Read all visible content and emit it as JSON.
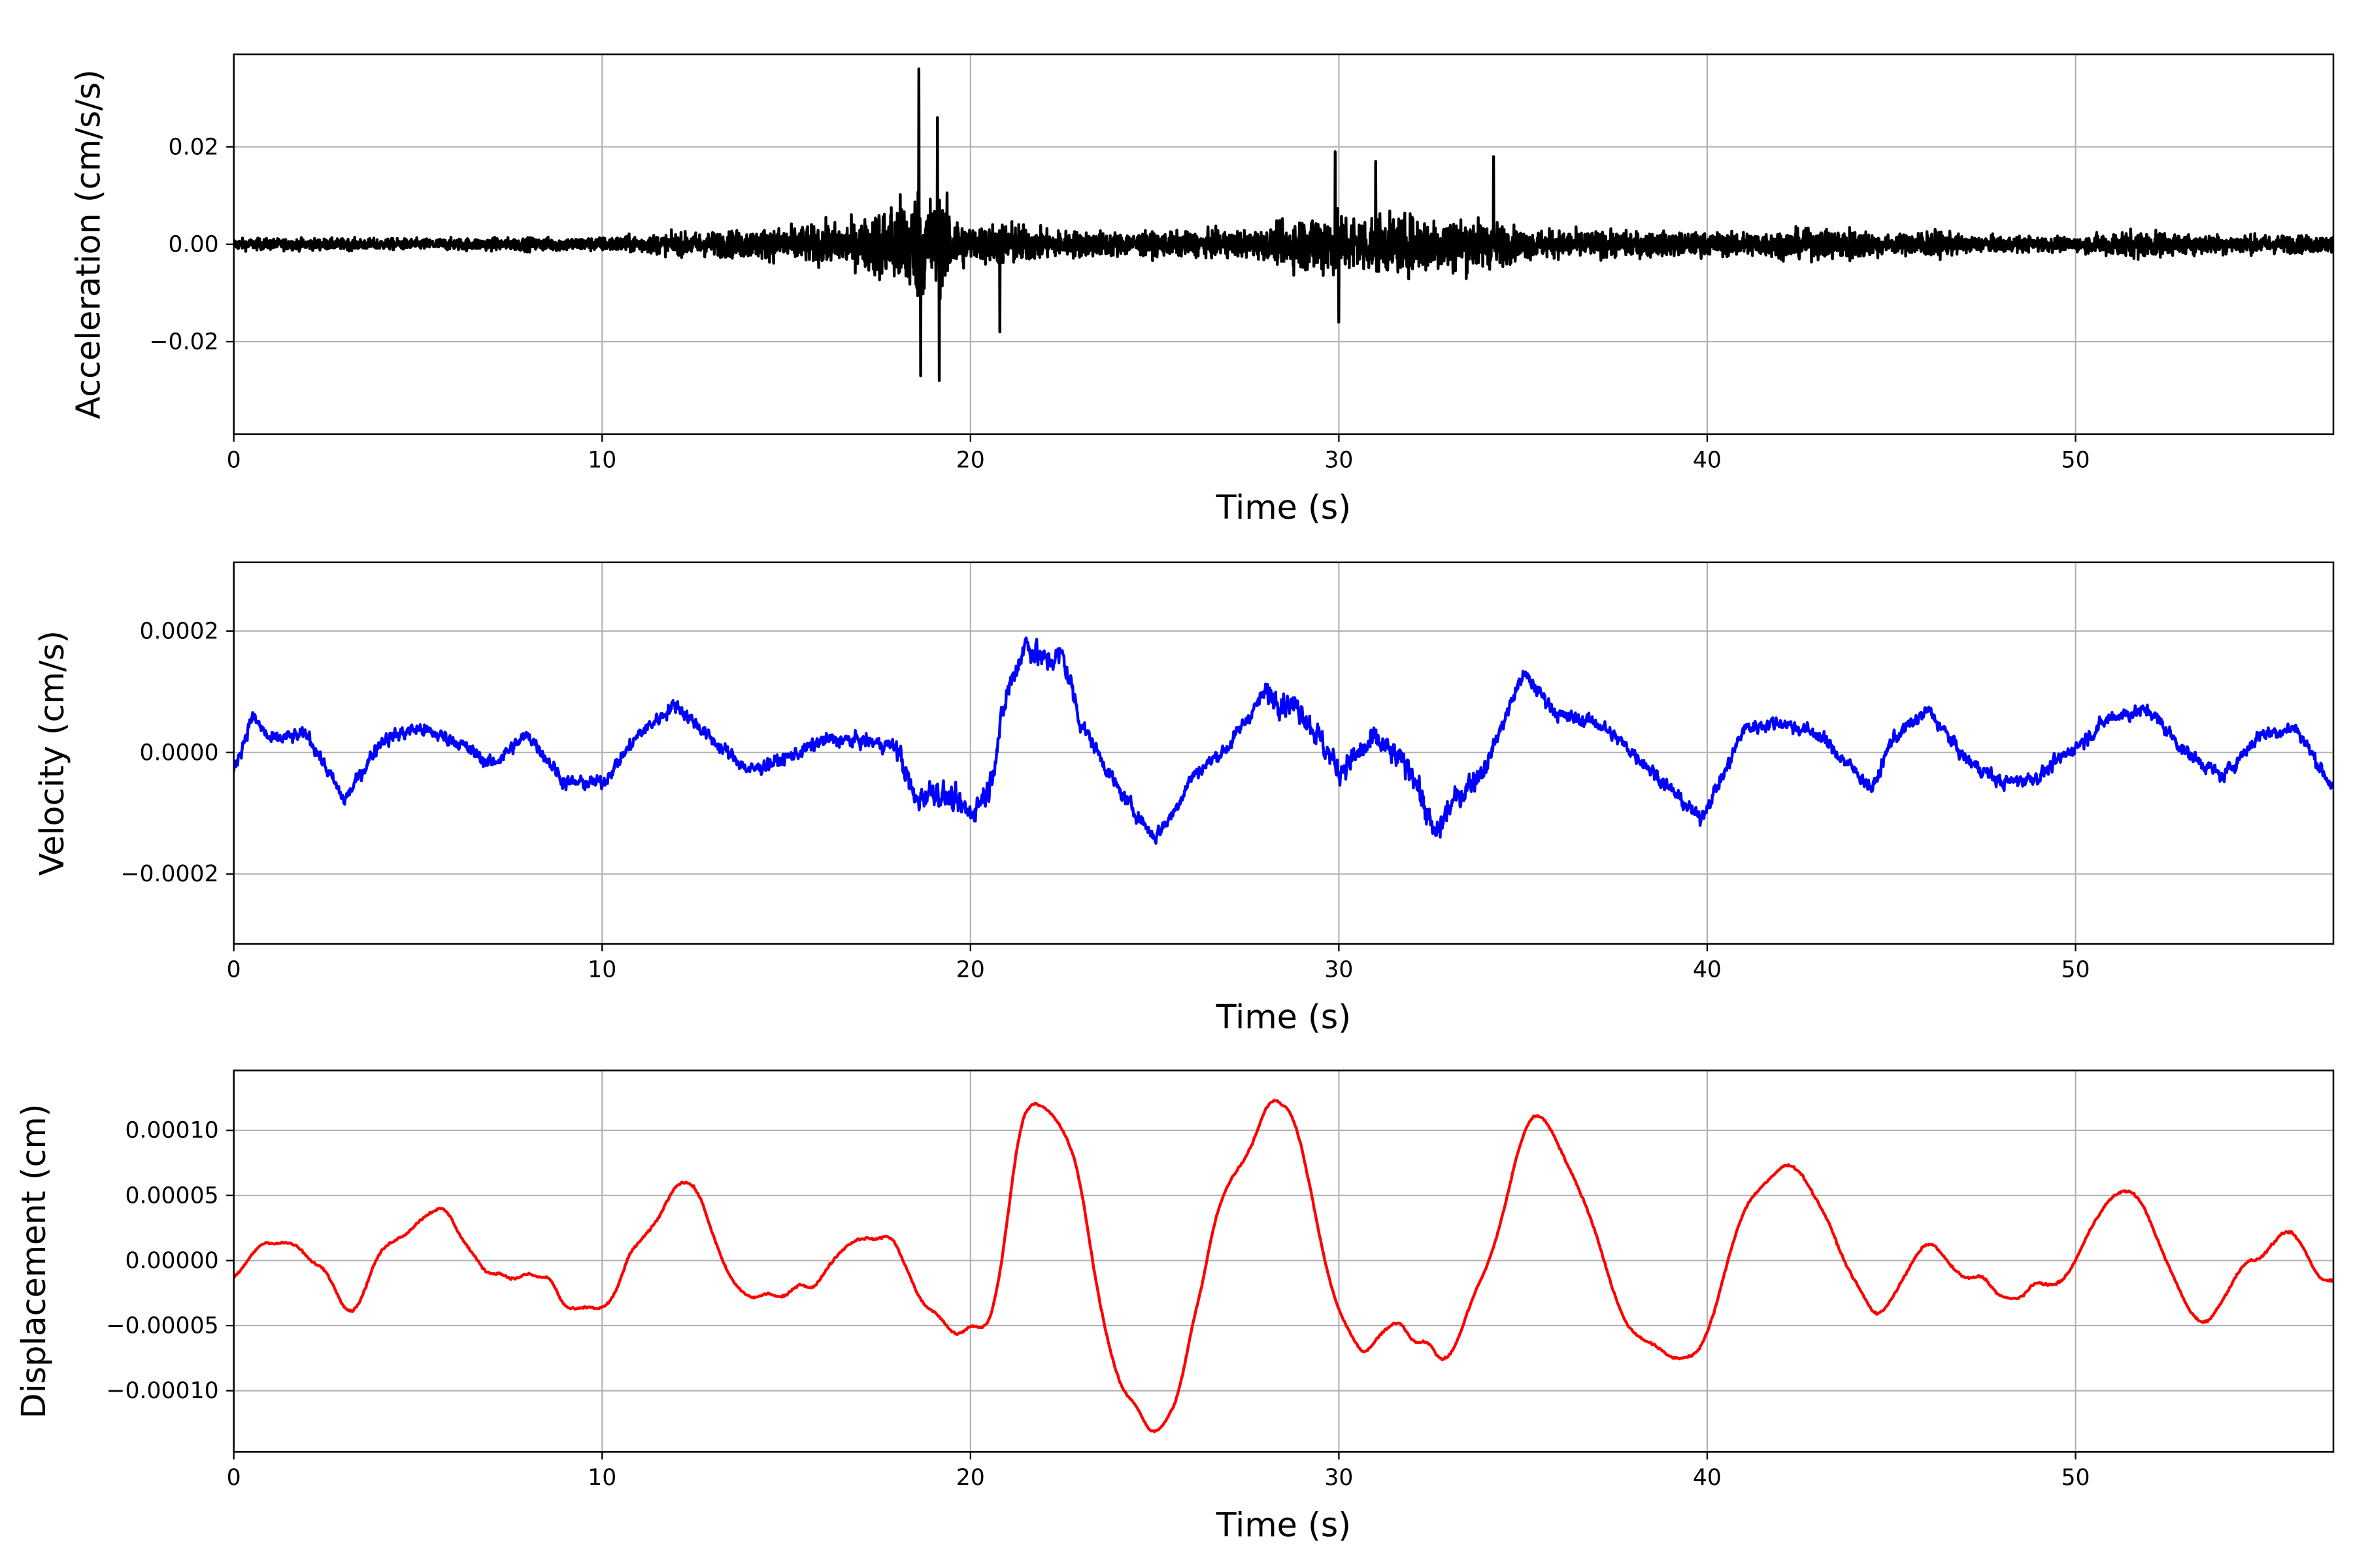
{
  "chart_data": [
    {
      "type": "line",
      "title": "",
      "xlabel": "Time (s)",
      "ylabel": "Acceleration (cm/s/s)",
      "xlim": [
        0,
        57
      ],
      "ylim": [
        -0.039,
        0.039
      ],
      "xticks": [
        0,
        10,
        20,
        30,
        40,
        50
      ],
      "yticks": [
        -0.02,
        0.0,
        0.02
      ],
      "ytick_labels": [
        "−0.02",
        "0.00",
        "0.02"
      ],
      "grid": true,
      "color": "#000000",
      "series_note": "dense noisy record; amplitude envelope and peak values",
      "envelope": {
        "t": [
          0,
          5,
          10,
          14,
          17,
          18.5,
          19.2,
          20,
          21,
          22,
          25,
          28,
          29.5,
          31,
          33,
          34.2,
          35,
          40,
          43,
          44,
          45,
          46,
          47,
          50,
          51.5,
          53,
          57
        ],
        "amplitude": [
          0.002,
          0.002,
          0.0025,
          0.005,
          0.008,
          0.02,
          0.016,
          0.006,
          0.008,
          0.005,
          0.004,
          0.005,
          0.012,
          0.01,
          0.01,
          0.008,
          0.005,
          0.004,
          0.005,
          0.006,
          0.003,
          0.005,
          0.003,
          0.0025,
          0.005,
          0.0035,
          0.003
        ]
      },
      "peaks": {
        "t": [
          18.6,
          18.65,
          19.1,
          19.15,
          20.8,
          29.9,
          30.0,
          34.2,
          31.0
        ],
        "value": [
          0.036,
          -0.027,
          0.026,
          -0.028,
          -0.018,
          0.019,
          -0.016,
          0.018,
          0.017
        ]
      }
    },
    {
      "type": "line",
      "xlabel": "Time (s)",
      "ylabel": "Velocity (cm/s)",
      "xlim": [
        0,
        57
      ],
      "ylim": [
        -0.000315,
        0.000313
      ],
      "xticks": [
        0,
        10,
        20,
        30,
        40,
        50
      ],
      "yticks": [
        -0.0002,
        0.0,
        0.0002
      ],
      "ytick_labels": [
        "−0.0002",
        "0.0000",
        "0.0002"
      ],
      "grid": true,
      "color": "#0000ff",
      "trend": {
        "t": [
          0,
          0.5,
          1,
          2,
          3,
          4,
          5,
          6,
          7,
          8,
          9,
          10,
          11,
          12,
          13,
          14,
          15,
          16,
          17,
          18,
          18.5,
          19,
          20,
          20.5,
          21,
          21.5,
          22,
          22.5,
          23,
          24,
          25,
          25.5,
          26,
          27,
          28,
          29,
          30,
          31,
          32,
          32.6,
          33,
          34,
          35,
          36,
          37,
          38,
          39,
          39.8,
          40.5,
          41,
          42,
          43,
          44,
          44.5,
          45,
          46,
          47,
          48,
          49,
          50,
          51,
          52,
          53,
          54,
          55,
          56,
          57
        ],
        "value": [
          -3e-05,
          6e-05,
          2e-05,
          3e-05,
          -8e-05,
          2e-05,
          4e-05,
          2e-05,
          -2e-05,
          3e-05,
          -5e-05,
          -5e-05,
          3e-05,
          8e-05,
          2e-05,
          -3e-05,
          -1e-05,
          2e-05,
          2e-05,
          1e-05,
          -8e-05,
          -6e-05,
          -0.0001,
          -6e-05,
          0.0001,
          0.00018,
          0.00015,
          0.00016,
          5e-05,
          -6e-05,
          -0.00014,
          -0.0001,
          -4e-05,
          1e-05,
          0.0001,
          7e-05,
          -3e-05,
          2e-05,
          -3e-05,
          -0.00014,
          -9e-05,
          -2e-05,
          0.00013,
          6e-05,
          5e-05,
          0.0,
          -6e-05,
          -0.00011,
          -3e-05,
          4e-05,
          5e-05,
          3e-05,
          -3e-05,
          -6e-05,
          2e-05,
          7e-05,
          -1e-05,
          -5e-05,
          -4e-05,
          1e-05,
          6e-05,
          7e-05,
          0.0,
          -4e-05,
          3e-05,
          4e-05,
          -6e-05
        ]
      }
    },
    {
      "type": "line",
      "xlabel": "Time (s)",
      "ylabel": "Displacement (cm)",
      "xlim": [
        0,
        57
      ],
      "ylim": [
        -0.000147,
        0.000146
      ],
      "xticks": [
        0,
        10,
        20,
        30,
        40,
        50
      ],
      "yticks": [
        -0.0001,
        -5e-05,
        0.0,
        5e-05,
        0.0001
      ],
      "ytick_labels": [
        "−0.00010",
        "−0.00005",
        "0.00000",
        "0.00005",
        "0.00010"
      ],
      "grid": true,
      "color": "#ff0000",
      "x": [
        0,
        0.5,
        0.8,
        1.2,
        1.4,
        1.8,
        2.2,
        2.4,
        2.8,
        3.1,
        3.4,
        3.9,
        4.3,
        4.7,
        5.0,
        5.5,
        5.8,
        6.1,
        6.5,
        6.9,
        7.2,
        7.5,
        7.8,
        8.0,
        8.3,
        8.6,
        8.9,
        9.3,
        9.6,
        10.0,
        10.4,
        10.7,
        11.2,
        11.6,
        11.9,
        12.2,
        12.6,
        13.0,
        13.4,
        13.8,
        14.2,
        14.5,
        14.8,
        15.1,
        15.4,
        15.7,
        16.0,
        16.4,
        16.8,
        17.2,
        17.5,
        17.8,
        18.1,
        18.4,
        18.7,
        19.0,
        19.5,
        19.7,
        19.9,
        20.2,
        20.4,
        20.7,
        21.0,
        21.3,
        21.6,
        21.9,
        22.3,
        22.7,
        23.0,
        23.3,
        23.7,
        24.1,
        24.5,
        24.9,
        25.3,
        25.7,
        26.0,
        26.3,
        26.6,
        27.0,
        27.5,
        27.8,
        28.1,
        28.5,
        28.8,
        29.2,
        29.6,
        30.0,
        30.4,
        30.7,
        31.0,
        31.4,
        31.7,
        32.0,
        32.4,
        32.8,
        33.2,
        33.6,
        34.1,
        34.5,
        34.9,
        35.3,
        35.7,
        36.1,
        36.6,
        37.0,
        37.4,
        37.8,
        38.2,
        38.6,
        39.0,
        39.4,
        39.8,
        40.2,
        40.6,
        41.0,
        41.4,
        41.8,
        42.1,
        42.5,
        42.9,
        43.3,
        43.7,
        44.1,
        44.4,
        44.6,
        45.0,
        45.4,
        45.8,
        46.1,
        46.5,
        46.8,
        47.1,
        47.5,
        47.8,
        48.2,
        48.6,
        48.9,
        49.3,
        49.7,
        50.0,
        50.5,
        51.0,
        51.5,
        51.9,
        52.3,
        52.7,
        53.1,
        53.5,
        53.8,
        54.2,
        54.6,
        55.0,
        55.4,
        55.8,
        56.2,
        56.6,
        57.0
      ],
      "y": [
        -1.5e-05,
        5e-06,
        1.5e-05,
        1.2e-05,
        1.5e-05,
        1e-05,
        -5e-06,
        -2e-06,
        -2.5e-05,
        -4.2e-05,
        -3.5e-05,
        5e-06,
        1.5e-05,
        2e-05,
        3e-05,
        4e-05,
        4e-05,
        2e-05,
        5e-06,
        -1.2e-05,
        -8e-06,
        -1.5e-05,
        -1.3e-05,
        -8e-06,
        -1.5e-05,
        -1e-05,
        -3.5e-05,
        -3.8e-05,
        -3.5e-05,
        -3.8e-05,
        -2.5e-05,
        5e-06,
        2e-05,
        3.5e-05,
        5.5e-05,
        6.2e-05,
        5.5e-05,
        2e-05,
        -1e-05,
        -2.5e-05,
        -3e-05,
        -2.3e-05,
        -3e-05,
        -2.5e-05,
        -1.5e-05,
        -2.5e-05,
        -1e-05,
        5e-06,
        1.5e-05,
        1.8e-05,
        1.5e-05,
        2.2e-05,
        5e-06,
        -1.5e-05,
        -3.5e-05,
        -3.8e-05,
        -5.5e-05,
        -6e-05,
        -5e-05,
        -5e-05,
        -5.5e-05,
        -3e-05,
        3e-05,
        0.0001,
        0.000122,
        0.00012,
        0.00011,
        9e-05,
        6e-05,
        0.0,
        -6e-05,
        -0.0001,
        -0.00011,
        -0.000135,
        -0.000125,
        -0.0001,
        -5e-05,
        -2e-05,
        3e-05,
        6e-05,
        8e-05,
        0.0001,
        0.000125,
        0.00012,
        0.00011,
        6e-05,
        0.0,
        -4e-05,
        -6e-05,
        -7.5e-05,
        -6e-05,
        -5e-05,
        -4.5e-05,
        -6.5e-05,
        -6e-05,
        -8e-05,
        -6.5e-05,
        -3e-05,
        0.0,
        4e-05,
        9e-05,
        0.000115,
        0.000105,
        8e-05,
        5e-05,
        2e-05,
        -2e-05,
        -5e-05,
        -6e-05,
        -6.5e-05,
        -7.5e-05,
        -7.5e-05,
        -7e-05,
        -4e-05,
        5e-06,
        4e-05,
        5.5e-05,
        6.5e-05,
        7.5e-05,
        7e-05,
        5e-05,
        3e-05,
        0.0,
        -2e-05,
        -3.5e-05,
        -4.5e-05,
        -3e-05,
        -1e-05,
        1e-05,
        1.5e-05,
        0.0,
        -1e-05,
        -1.5e-05,
        -1e-05,
        -2.5e-05,
        -3e-05,
        -2.8e-05,
        -1.5e-05,
        -2e-05,
        -1.5e-05,
        0.0,
        3e-05,
        5e-05,
        5.5e-05,
        4e-05,
        1e-05,
        -1.5e-05,
        -4e-05,
        -5e-05,
        -4e-05,
        -2e-05,
        0.0,
        0.0,
        1.5e-05,
        2.5e-05,
        1e-05,
        -1.5e-05,
        -1.5e-05
      ]
    }
  ]
}
